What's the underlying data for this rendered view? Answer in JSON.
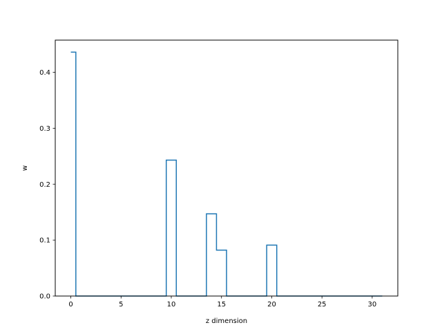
{
  "chart_data": {
    "type": "line",
    "style": "step-mid",
    "title": "",
    "xlabel": "z dimension",
    "ylabel": "w",
    "xlim": [
      -1.55,
      32.55
    ],
    "ylim": [
      0,
      0.4575
    ],
    "xticks": [
      0,
      5,
      10,
      15,
      20,
      25,
      30
    ],
    "yticks": [
      0.0,
      0.1,
      0.2,
      0.3,
      0.4
    ],
    "ytick_labels": [
      "0.0",
      "0.1",
      "0.2",
      "0.3",
      "0.4"
    ],
    "grid": false,
    "series": [
      {
        "color": "#1f77b4",
        "x": [
          0,
          1,
          2,
          3,
          4,
          5,
          6,
          7,
          8,
          9,
          10,
          11,
          12,
          13,
          14,
          15,
          16,
          17,
          18,
          19,
          20,
          21,
          22,
          23,
          24,
          25,
          26,
          27,
          28,
          29,
          30,
          31
        ],
        "y": [
          0.436,
          0,
          0,
          0,
          0,
          0,
          0,
          0,
          0,
          0,
          0.243,
          0,
          0,
          0,
          0.147,
          0.082,
          0,
          0,
          0,
          0,
          0.091,
          0,
          0,
          0,
          0,
          0,
          0,
          0,
          0,
          0,
          0,
          0
        ]
      }
    ]
  }
}
